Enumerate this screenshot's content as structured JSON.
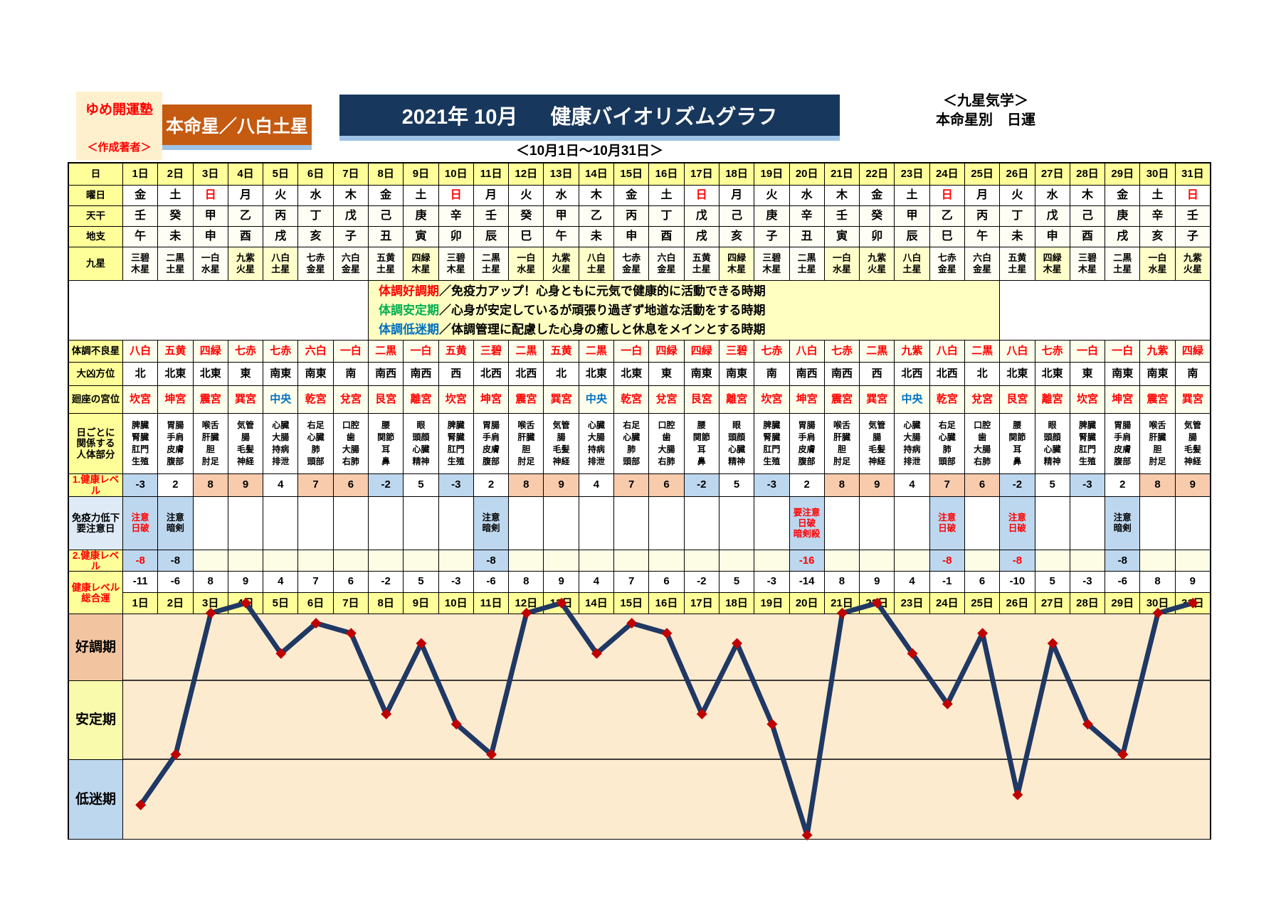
{
  "header": {
    "author_school": "ゆめ開運塾",
    "author_label": "＜作成著者＞",
    "honmeisei": "本命星／八白土星",
    "title_left": "2021年 10月",
    "title_right": "健康バイオリズムグラフ",
    "subtitle": "＜10月1日～10月31日＞",
    "right_line1": "＜九星気学＞",
    "right_line2": "本命星別　日運"
  },
  "row_labels": {
    "day": "日",
    "weekday": "曜日",
    "tenkan": "天干",
    "chishi": "地支",
    "kyusei": "九星",
    "furyosei": "体調不良星",
    "hoi": "大凶方位",
    "kyui": "廻座の宮位",
    "body": [
      "日ごとに",
      "関係する",
      "人体部分"
    ],
    "level1": "1.健康レベル",
    "immune": [
      "免疫力低下",
      "要注意日"
    ],
    "level2": "2.健康レベル",
    "total": [
      "健康レベル",
      "総合運"
    ],
    "bands": [
      "好調期",
      "安定期",
      "低迷期"
    ]
  },
  "legend": [
    {
      "term": "体調好調期",
      "color": "#FF0000",
      "desc": "／免疫力アップ！心身ともに元気で健康的に活動できる時期"
    },
    {
      "term": "体調安定期",
      "color": "#00B050",
      "desc": "／心身が安定しているが頑張り過ぎず地道な活動をする時期"
    },
    {
      "term": "体調低迷期",
      "color": "#0070C0",
      "desc": "／体調管理に配慮した心身の癒しと休息をメインとする時期"
    }
  ],
  "days": {
    "labels": [
      "1日",
      "2日",
      "3日",
      "4日",
      "5日",
      "6日",
      "7日",
      "8日",
      "9日",
      "10日",
      "11日",
      "12日",
      "13日",
      "14日",
      "15日",
      "16日",
      "17日",
      "18日",
      "19日",
      "20日",
      "21日",
      "22日",
      "23日",
      "24日",
      "25日",
      "26日",
      "27日",
      "28日",
      "29日",
      "30日",
      "31日"
    ],
    "weekday": [
      "金",
      "土",
      "日",
      "月",
      "火",
      "水",
      "木",
      "金",
      "土",
      "日",
      "月",
      "火",
      "水",
      "木",
      "金",
      "土",
      "日",
      "月",
      "火",
      "水",
      "木",
      "金",
      "土",
      "日",
      "月",
      "火",
      "水",
      "木",
      "金",
      "土",
      "日"
    ],
    "tenkan": [
      "壬",
      "癸",
      "甲",
      "乙",
      "丙",
      "丁",
      "戊",
      "己",
      "庚",
      "辛",
      "壬",
      "癸",
      "甲",
      "乙",
      "丙",
      "丁",
      "戊",
      "己",
      "庚",
      "辛",
      "壬",
      "癸",
      "甲",
      "乙",
      "丙",
      "丁",
      "戊",
      "己",
      "庚",
      "辛",
      "壬"
    ],
    "chishi": [
      "午",
      "未",
      "申",
      "酉",
      "戌",
      "亥",
      "子",
      "丑",
      "寅",
      "卯",
      "辰",
      "巳",
      "午",
      "未",
      "申",
      "酉",
      "戌",
      "亥",
      "子",
      "丑",
      "寅",
      "卯",
      "辰",
      "巳",
      "午",
      "未",
      "申",
      "酉",
      "戌",
      "亥",
      "子"
    ],
    "kyusei": [
      "三碧木星",
      "二黒土星",
      "一白水星",
      "九紫火星",
      "八白土星",
      "七赤金星",
      "六白金星",
      "五黄土星",
      "四緑木星",
      "三碧木星",
      "二黒土星",
      "一白水星",
      "九紫火星",
      "八白土星",
      "七赤金星",
      "六白金星",
      "五黄土星",
      "四緑木星",
      "三碧木星",
      "二黒土星",
      "一白水星",
      "九紫火星",
      "八白土星",
      "七赤金星",
      "六白金星",
      "五黄土星",
      "四緑木星",
      "三碧木星",
      "二黒土星",
      "一白水星",
      "九紫火星"
    ],
    "kyusei_highlight_days": [
      4,
      5,
      9,
      12,
      13,
      14,
      18,
      21,
      22,
      23,
      27,
      30,
      31
    ],
    "furyosei": [
      "八白",
      "五黄",
      "四緑",
      "七赤",
      "七赤",
      "六白",
      "一白",
      "二黒",
      "一白",
      "五黄",
      "三碧",
      "二黒",
      "五黄",
      "二黒",
      "一白",
      "四緑",
      "四緑",
      "三碧",
      "七赤",
      "八白",
      "七赤",
      "二黒",
      "九紫",
      "八白",
      "二黒",
      "八白",
      "七赤",
      "一白",
      "一白",
      "九紫",
      "四緑"
    ],
    "hoi": [
      "北",
      "北東",
      "北東",
      "東",
      "南東",
      "南東",
      "南",
      "南西",
      "南西",
      "西",
      "北西",
      "北西",
      "北",
      "北東",
      "北東",
      "東",
      "南東",
      "南東",
      "南",
      "南西",
      "南西",
      "西",
      "北西",
      "北西",
      "北",
      "北東",
      "北東",
      "東",
      "南東",
      "南東",
      "南"
    ],
    "kyui": [
      "坎宮",
      "坤宮",
      "震宮",
      "巽宮",
      "中央",
      "乾宮",
      "兌宮",
      "艮宮",
      "離宮",
      "坎宮",
      "坤宮",
      "震宮",
      "巽宮",
      "中央",
      "乾宮",
      "兌宮",
      "艮宮",
      "離宮",
      "坎宮",
      "坤宮",
      "震宮",
      "巽宮",
      "中央",
      "乾宮",
      "兌宮",
      "艮宮",
      "離宮",
      "坎宮",
      "坤宮",
      "震宮",
      "巽宮"
    ],
    "body": [
      [
        "脾臓",
        "腎臓",
        "肛門",
        "生殖"
      ],
      [
        "胃腸",
        "手肩",
        "皮膚",
        "腹部"
      ],
      [
        "喉舌",
        "肝臓",
        "胆",
        "肘足"
      ],
      [
        "気管",
        "腸",
        "毛髪",
        "神経"
      ],
      [
        "心臓",
        "大腸",
        "持病",
        "排泄"
      ],
      [
        "右足",
        "心臓",
        "肺",
        "頭部"
      ],
      [
        "口腔",
        "歯",
        "大腸",
        "右肺"
      ],
      [
        "腰",
        "関節",
        "耳",
        "鼻"
      ],
      [
        "眼",
        "頭顔",
        "心臓",
        "精神"
      ],
      [
        "脾臓",
        "腎臓",
        "肛門",
        "生殖"
      ],
      [
        "胃腸",
        "手肩",
        "皮膚",
        "腹部"
      ],
      [
        "喉舌",
        "肝臓",
        "胆",
        "肘足"
      ],
      [
        "気管",
        "腸",
        "毛髪",
        "神経"
      ],
      [
        "心臓",
        "大腸",
        "持病",
        "排泄"
      ],
      [
        "右足",
        "心臓",
        "肺",
        "頭部"
      ],
      [
        "口腔",
        "歯",
        "大腸",
        "右肺"
      ],
      [
        "腰",
        "関節",
        "耳",
        "鼻"
      ],
      [
        "眼",
        "頭顔",
        "心臓",
        "精神"
      ],
      [
        "脾臓",
        "腎臓",
        "肛門",
        "生殖"
      ],
      [
        "胃腸",
        "手肩",
        "皮膚",
        "腹部"
      ],
      [
        "喉舌",
        "肝臓",
        "胆",
        "肘足"
      ],
      [
        "気管",
        "腸",
        "毛髪",
        "神経"
      ],
      [
        "心臓",
        "大腸",
        "持病",
        "排泄"
      ],
      [
        "右足",
        "心臓",
        "肺",
        "頭部"
      ],
      [
        "口腔",
        "歯",
        "大腸",
        "右肺"
      ],
      [
        "腰",
        "関節",
        "耳",
        "鼻"
      ],
      [
        "眼",
        "頭顔",
        "心臓",
        "精神"
      ],
      [
        "脾臓",
        "腎臓",
        "肛門",
        "生殖"
      ],
      [
        "胃腸",
        "手肩",
        "皮膚",
        "腹部"
      ],
      [
        "喉舌",
        "肝臓",
        "胆",
        "肘足"
      ],
      [
        "気管",
        "腸",
        "毛髪",
        "神経"
      ]
    ],
    "level1": [
      -3,
      2,
      8,
      9,
      4,
      7,
      6,
      -2,
      5,
      -3,
      2,
      8,
      9,
      4,
      7,
      6,
      -2,
      5,
      -3,
      2,
      8,
      9,
      4,
      7,
      6,
      -2,
      5,
      -3,
      2,
      8,
      9
    ],
    "immune": [
      {
        "lines": [
          "注意",
          "日破"
        ],
        "tone": "red"
      },
      {
        "lines": [
          "注意",
          "暗剣"
        ],
        "tone": "black"
      },
      null,
      null,
      null,
      null,
      null,
      null,
      null,
      null,
      {
        "lines": [
          "注意",
          "暗剣"
        ],
        "tone": "black"
      },
      null,
      null,
      null,
      null,
      null,
      null,
      null,
      null,
      {
        "lines": [
          "要注意",
          "日破",
          "暗剣殺"
        ],
        "tone": "red"
      },
      null,
      null,
      null,
      {
        "lines": [
          "注意",
          "日破"
        ],
        "tone": "red"
      },
      null,
      {
        "lines": [
          "注意",
          "日破"
        ],
        "tone": "red"
      },
      null,
      null,
      {
        "lines": [
          "注意",
          "暗剣"
        ],
        "tone": "black"
      },
      null,
      null
    ],
    "level2": [
      {
        "value": -8,
        "tone": "red"
      },
      {
        "value": -8,
        "tone": "black"
      },
      null,
      null,
      null,
      null,
      null,
      null,
      null,
      null,
      {
        "value": -8,
        "tone": "black"
      },
      null,
      null,
      null,
      null,
      null,
      null,
      null,
      null,
      {
        "value": -16,
        "tone": "red"
      },
      null,
      null,
      null,
      {
        "value": -8,
        "tone": "red"
      },
      null,
      {
        "value": -8,
        "tone": "red"
      },
      null,
      null,
      {
        "value": -8,
        "tone": "black"
      },
      null,
      null
    ],
    "total": [
      -11,
      -6,
      8,
      9,
      4,
      7,
      6,
      -2,
      5,
      -3,
      -6,
      8,
      9,
      4,
      7,
      6,
      -2,
      5,
      -3,
      -14,
      8,
      9,
      4,
      -1,
      6,
      -10,
      5,
      -3,
      -6,
      8,
      9
    ]
  },
  "chart_data": {
    "type": "line",
    "title": "健康バイオリズムグラフ 2021年10月（本命星／八白土星）",
    "x_labels": [
      "1日",
      "2日",
      "3日",
      "4日",
      "5日",
      "6日",
      "7日",
      "8日",
      "9日",
      "10日",
      "11日",
      "12日",
      "13日",
      "14日",
      "15日",
      "16日",
      "17日",
      "18日",
      "19日",
      "20日",
      "21日",
      "22日",
      "23日",
      "24日",
      "25日",
      "26日",
      "27日",
      "28日",
      "29日",
      "30日",
      "31日"
    ],
    "values": [
      -11,
      -6,
      8,
      9,
      4,
      7,
      6,
      -2,
      5,
      -3,
      -6,
      8,
      9,
      4,
      7,
      6,
      -2,
      5,
      -3,
      -14,
      8,
      9,
      4,
      -1,
      6,
      -10,
      5,
      -3,
      -6,
      8,
      9
    ],
    "series_name": "健康レベル総合運",
    "bands": [
      {
        "label": "好調期",
        "approx_range": "+2以上"
      },
      {
        "label": "安定期",
        "approx_range": "+1〜-6"
      },
      {
        "label": "低迷期",
        "approx_range": "-7以下"
      }
    ],
    "line_color": "#1F3864",
    "marker_color": "#C00000",
    "grid": false,
    "legend_position": "left-band-labels"
  },
  "colors": {
    "navy_header": "#17375D",
    "orange_header": "#C55A11",
    "author_bg": "#FEF0CD",
    "blue_strip": "#9DC3E6",
    "label_yellow": "#FFFF99",
    "legend_bg": "#FFFFC2",
    "cream_cell": "#FEFEEC",
    "kyusei_highlight": "#FFFFC9",
    "salmon_cell": "#F8CBAD",
    "blue_cell": "#BDD7EE",
    "immune_label_bg": "#DEEBF7",
    "plot_bg": "#FDEBD0",
    "band_good": "#F2C5A0",
    "band_stable": "#FAFAAD",
    "band_low": "#BDD7EE",
    "red_text": "#FF0000",
    "green_text": "#00B050",
    "blue_text": "#0070C0",
    "line": "#1F3864",
    "marker": "#C00000"
  }
}
